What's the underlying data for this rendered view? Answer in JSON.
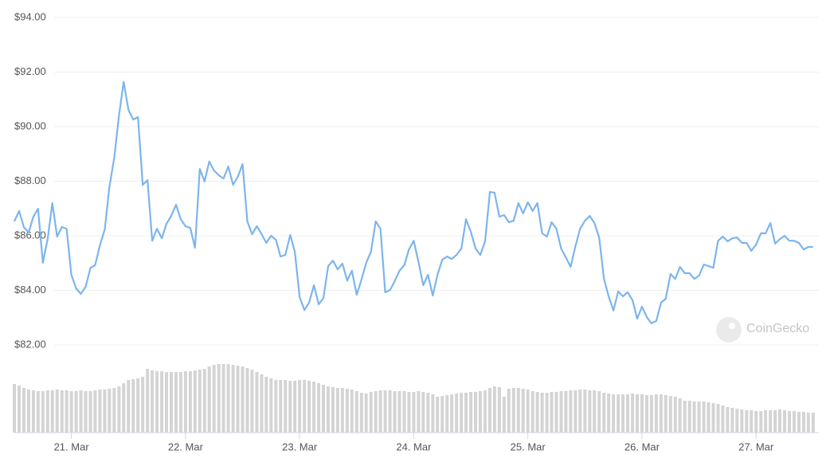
{
  "chart_data": {
    "type": "line",
    "x": [
      20.5,
      20.542,
      20.583,
      20.625,
      20.667,
      20.708,
      20.75,
      20.792,
      20.833,
      20.875,
      20.917,
      20.958,
      21,
      21.042,
      21.083,
      21.125,
      21.167,
      21.208,
      21.25,
      21.292,
      21.333,
      21.375,
      21.417,
      21.458,
      21.5,
      21.542,
      21.583,
      21.625,
      21.667,
      21.708,
      21.75,
      21.792,
      21.833,
      21.875,
      21.917,
      21.958,
      22,
      22.042,
      22.083,
      22.125,
      22.167,
      22.208,
      22.25,
      22.292,
      22.333,
      22.375,
      22.417,
      22.458,
      22.5,
      22.542,
      22.583,
      22.625,
      22.667,
      22.708,
      22.75,
      22.792,
      22.833,
      22.875,
      22.917,
      22.958,
      23,
      23.042,
      23.083,
      23.125,
      23.167,
      23.208,
      23.25,
      23.292,
      23.333,
      23.375,
      23.417,
      23.458,
      23.5,
      23.542,
      23.583,
      23.625,
      23.667,
      23.708,
      23.75,
      23.792,
      23.833,
      23.875,
      23.917,
      23.958,
      24,
      24.042,
      24.083,
      24.125,
      24.167,
      24.208,
      24.25,
      24.292,
      24.333,
      24.375,
      24.417,
      24.458,
      24.5,
      24.542,
      24.583,
      24.625,
      24.667,
      24.708,
      24.75,
      24.792,
      24.833,
      24.875,
      24.917,
      24.958,
      25,
      25.042,
      25.083,
      25.125,
      25.167,
      25.208,
      25.25,
      25.292,
      25.333,
      25.375,
      25.417,
      25.458,
      25.5,
      25.542,
      25.583,
      25.625,
      25.667,
      25.708,
      25.75,
      25.792,
      25.833,
      25.875,
      25.917,
      25.958,
      26,
      26.042,
      26.083,
      26.125,
      26.167,
      26.208,
      26.25,
      26.292,
      26.333,
      26.375,
      26.417,
      26.458,
      26.5,
      26.542,
      26.583,
      26.625,
      26.667,
      26.708,
      26.75,
      26.792,
      26.833,
      26.875,
      26.917,
      26.958,
      27,
      27.042,
      27.083,
      27.125,
      27.167,
      27.208,
      27.25,
      27.292,
      27.333,
      27.375,
      27.417,
      27.458,
      27.5
    ],
    "series": [
      {
        "color": "#7cb5ec",
        "values": [
          86.53,
          86.91,
          86.32,
          86.12,
          86.7,
          86.99,
          85.01,
          85.88,
          87.2,
          85.97,
          86.32,
          86.26,
          84.57,
          84.07,
          83.87,
          84.13,
          84.83,
          84.92,
          85.65,
          86.23,
          87.78,
          88.86,
          90.41,
          91.64,
          90.61,
          90.26,
          90.35,
          87.87,
          88.04,
          85.82,
          86.26,
          85.91,
          86.44,
          86.73,
          87.14,
          86.61,
          86.35,
          86.29,
          85.56,
          88.45,
          87.99,
          88.72,
          88.39,
          88.22,
          88.1,
          88.54,
          87.87,
          88.16,
          88.63,
          86.53,
          86.06,
          86.35,
          86.06,
          85.74,
          86.0,
          85.85,
          85.24,
          85.3,
          86.03,
          85.42,
          83.75,
          83.28,
          83.55,
          84.19,
          83.49,
          83.72,
          84.89,
          85.09,
          84.77,
          84.98,
          84.36,
          84.72,
          83.84,
          84.39,
          85.01,
          85.42,
          86.53,
          86.26,
          83.93,
          84.01,
          84.34,
          84.72,
          84.92,
          85.5,
          85.82,
          85.04,
          84.19,
          84.57,
          83.81,
          84.57,
          85.12,
          85.24,
          85.15,
          85.3,
          85.53,
          86.61,
          86.15,
          85.53,
          85.3,
          85.8,
          87.61,
          87.58,
          86.7,
          86.76,
          86.5,
          86.55,
          87.2,
          86.82,
          87.23,
          86.91,
          87.2,
          86.09,
          85.97,
          86.5,
          86.26,
          85.53,
          85.21,
          84.86,
          85.62,
          86.26,
          86.55,
          86.73,
          86.47,
          85.94,
          84.42,
          83.78,
          83.26,
          83.96,
          83.78,
          83.93,
          83.64,
          82.96,
          83.4,
          83.02,
          82.79,
          82.88,
          83.55,
          83.69,
          84.6,
          84.42,
          84.86,
          84.63,
          84.63,
          84.42,
          84.54,
          84.95,
          84.89,
          84.83,
          85.82,
          85.97,
          85.8,
          85.91,
          85.94,
          85.74,
          85.74,
          85.45,
          85.68,
          86.09,
          86.09,
          86.47,
          85.71,
          85.88,
          86.0,
          85.82,
          85.82,
          85.74,
          85.5,
          85.59,
          85.59
        ]
      },
      {
        "type": "bar",
        "axis": "y2",
        "color": "#d4d4d4",
        "values": [
          61,
          59,
          56,
          54,
          53,
          52,
          52,
          53,
          53,
          54,
          53,
          53,
          52,
          52,
          53,
          52,
          52,
          53,
          54,
          54,
          55,
          56,
          58,
          62,
          66,
          67,
          68,
          70,
          80,
          78,
          77,
          77,
          76,
          76,
          76,
          76,
          77,
          77,
          78,
          79,
          80,
          83,
          85,
          86,
          86,
          86,
          85,
          84,
          83,
          81,
          79,
          76,
          73,
          70,
          68,
          66,
          66,
          66,
          65,
          65,
          66,
          66,
          65,
          64,
          62,
          60,
          58,
          57,
          56,
          56,
          55,
          54,
          52,
          50,
          49,
          51,
          52,
          53,
          53,
          53,
          52,
          52,
          52,
          51,
          51,
          52,
          51,
          50,
          48,
          45,
          46,
          47,
          48,
          49,
          50,
          50,
          51,
          51,
          52,
          53,
          56,
          58,
          57,
          45,
          55,
          56,
          56,
          55,
          54,
          52,
          51,
          50,
          50,
          51,
          51,
          52,
          52,
          53,
          53,
          54,
          54,
          53,
          53,
          52,
          50,
          49,
          48,
          48,
          48,
          48,
          49,
          48,
          48,
          47,
          47,
          48,
          48,
          47,
          46,
          45,
          43,
          40,
          40,
          39,
          39,
          39,
          38,
          37,
          36,
          34,
          32,
          31,
          30,
          29,
          28,
          28,
          27,
          27,
          28,
          28,
          28,
          29,
          28,
          27,
          27,
          26,
          26,
          25,
          25
        ]
      }
    ],
    "xlim": [
      20.5,
      27.55
    ],
    "xticks": [
      {
        "value": 21,
        "label": "21. Mar"
      },
      {
        "value": 22,
        "label": "22. Mar"
      },
      {
        "value": 23,
        "label": "23. Mar"
      },
      {
        "value": 24,
        "label": "24. Mar"
      },
      {
        "value": 25,
        "label": "25. Mar"
      },
      {
        "value": 26,
        "label": "26. Mar"
      },
      {
        "value": 27,
        "label": "27. Mar"
      }
    ],
    "ylim": [
      82,
      94
    ],
    "yticks": [
      {
        "value": 82,
        "label": "$82.00"
      },
      {
        "value": 84,
        "label": "$84.00"
      },
      {
        "value": 86,
        "label": "$86.00"
      },
      {
        "value": 88,
        "label": "$88.00"
      },
      {
        "value": 90,
        "label": "$90.00"
      },
      {
        "value": 92,
        "label": "$92.00"
      },
      {
        "value": 94,
        "label": "$94.00"
      }
    ],
    "y2lim": [
      0,
      100
    ],
    "grid": true,
    "watermark": "CoinGecko"
  }
}
